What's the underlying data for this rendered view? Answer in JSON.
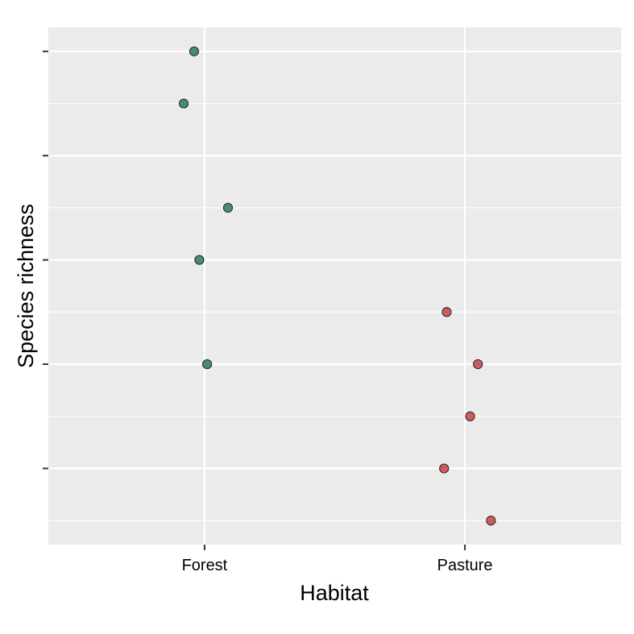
{
  "chart_data": {
    "type": "scatter",
    "xlabel": "Habitat",
    "ylabel": "Species richness",
    "categories": [
      "Forest",
      "Pasture"
    ],
    "y_tick_labels_visible": false,
    "ylim": [
      0.54,
      10.46
    ],
    "y_major_ticks": [
      2,
      4,
      6,
      8,
      10
    ],
    "y_minor_ticks": [
      1,
      3,
      5,
      7,
      9
    ],
    "grid": true,
    "legend": "none",
    "colors": {
      "panel": "#EBEBEB",
      "grid": "#FFFFFF",
      "Forest": "#4A8A72",
      "Pasture": "#CD5C5C",
      "point_outline": "#1A1A1A"
    },
    "points": [
      {
        "category": "Forest",
        "jitter": -0.04,
        "y": 10
      },
      {
        "category": "Forest",
        "jitter": -0.08,
        "y": 9
      },
      {
        "category": "Forest",
        "jitter": 0.09,
        "y": 7
      },
      {
        "category": "Forest",
        "jitter": -0.02,
        "y": 6
      },
      {
        "category": "Forest",
        "jitter": 0.01,
        "y": 4
      },
      {
        "category": "Pasture",
        "jitter": -0.07,
        "y": 5
      },
      {
        "category": "Pasture",
        "jitter": 0.05,
        "y": 4
      },
      {
        "category": "Pasture",
        "jitter": 0.02,
        "y": 3
      },
      {
        "category": "Pasture",
        "jitter": -0.08,
        "y": 2
      },
      {
        "category": "Pasture",
        "jitter": 0.1,
        "y": 1
      }
    ]
  }
}
